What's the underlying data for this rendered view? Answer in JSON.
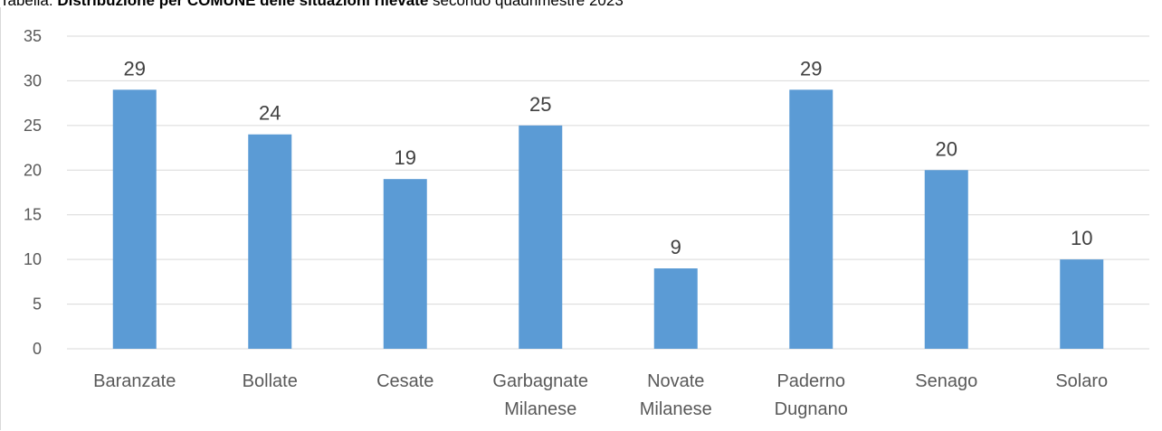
{
  "caption": {
    "prefix": "Tabella: ",
    "bold": "Distribuzione per COMUNE delle situazioni rilevate",
    "suffix": " secondo quadrimestre 2023"
  },
  "chart_data": {
    "type": "bar",
    "categories": [
      "Baranzate",
      "Bollate",
      "Cesate",
      "Garbagnate Milanese",
      "Novate Milanese",
      "Paderno Dugnano",
      "Senago",
      "Solaro"
    ],
    "category_lines": [
      [
        "Baranzate"
      ],
      [
        "Bollate"
      ],
      [
        "Cesate"
      ],
      [
        "Garbagnate",
        "Milanese"
      ],
      [
        "Novate",
        "Milanese"
      ],
      [
        "Paderno",
        "Dugnano"
      ],
      [
        "Senago"
      ],
      [
        "Solaro"
      ]
    ],
    "values": [
      29,
      24,
      19,
      25,
      9,
      29,
      20,
      10
    ],
    "title": "",
    "xlabel": "",
    "ylabel": "",
    "ylim": [
      0,
      35
    ],
    "yticks": [
      0,
      5,
      10,
      15,
      20,
      25,
      30,
      35
    ],
    "grid": true,
    "data_labels": true,
    "bar_color": "#5b9bd5",
    "grid_color": "#d9d9d9"
  }
}
